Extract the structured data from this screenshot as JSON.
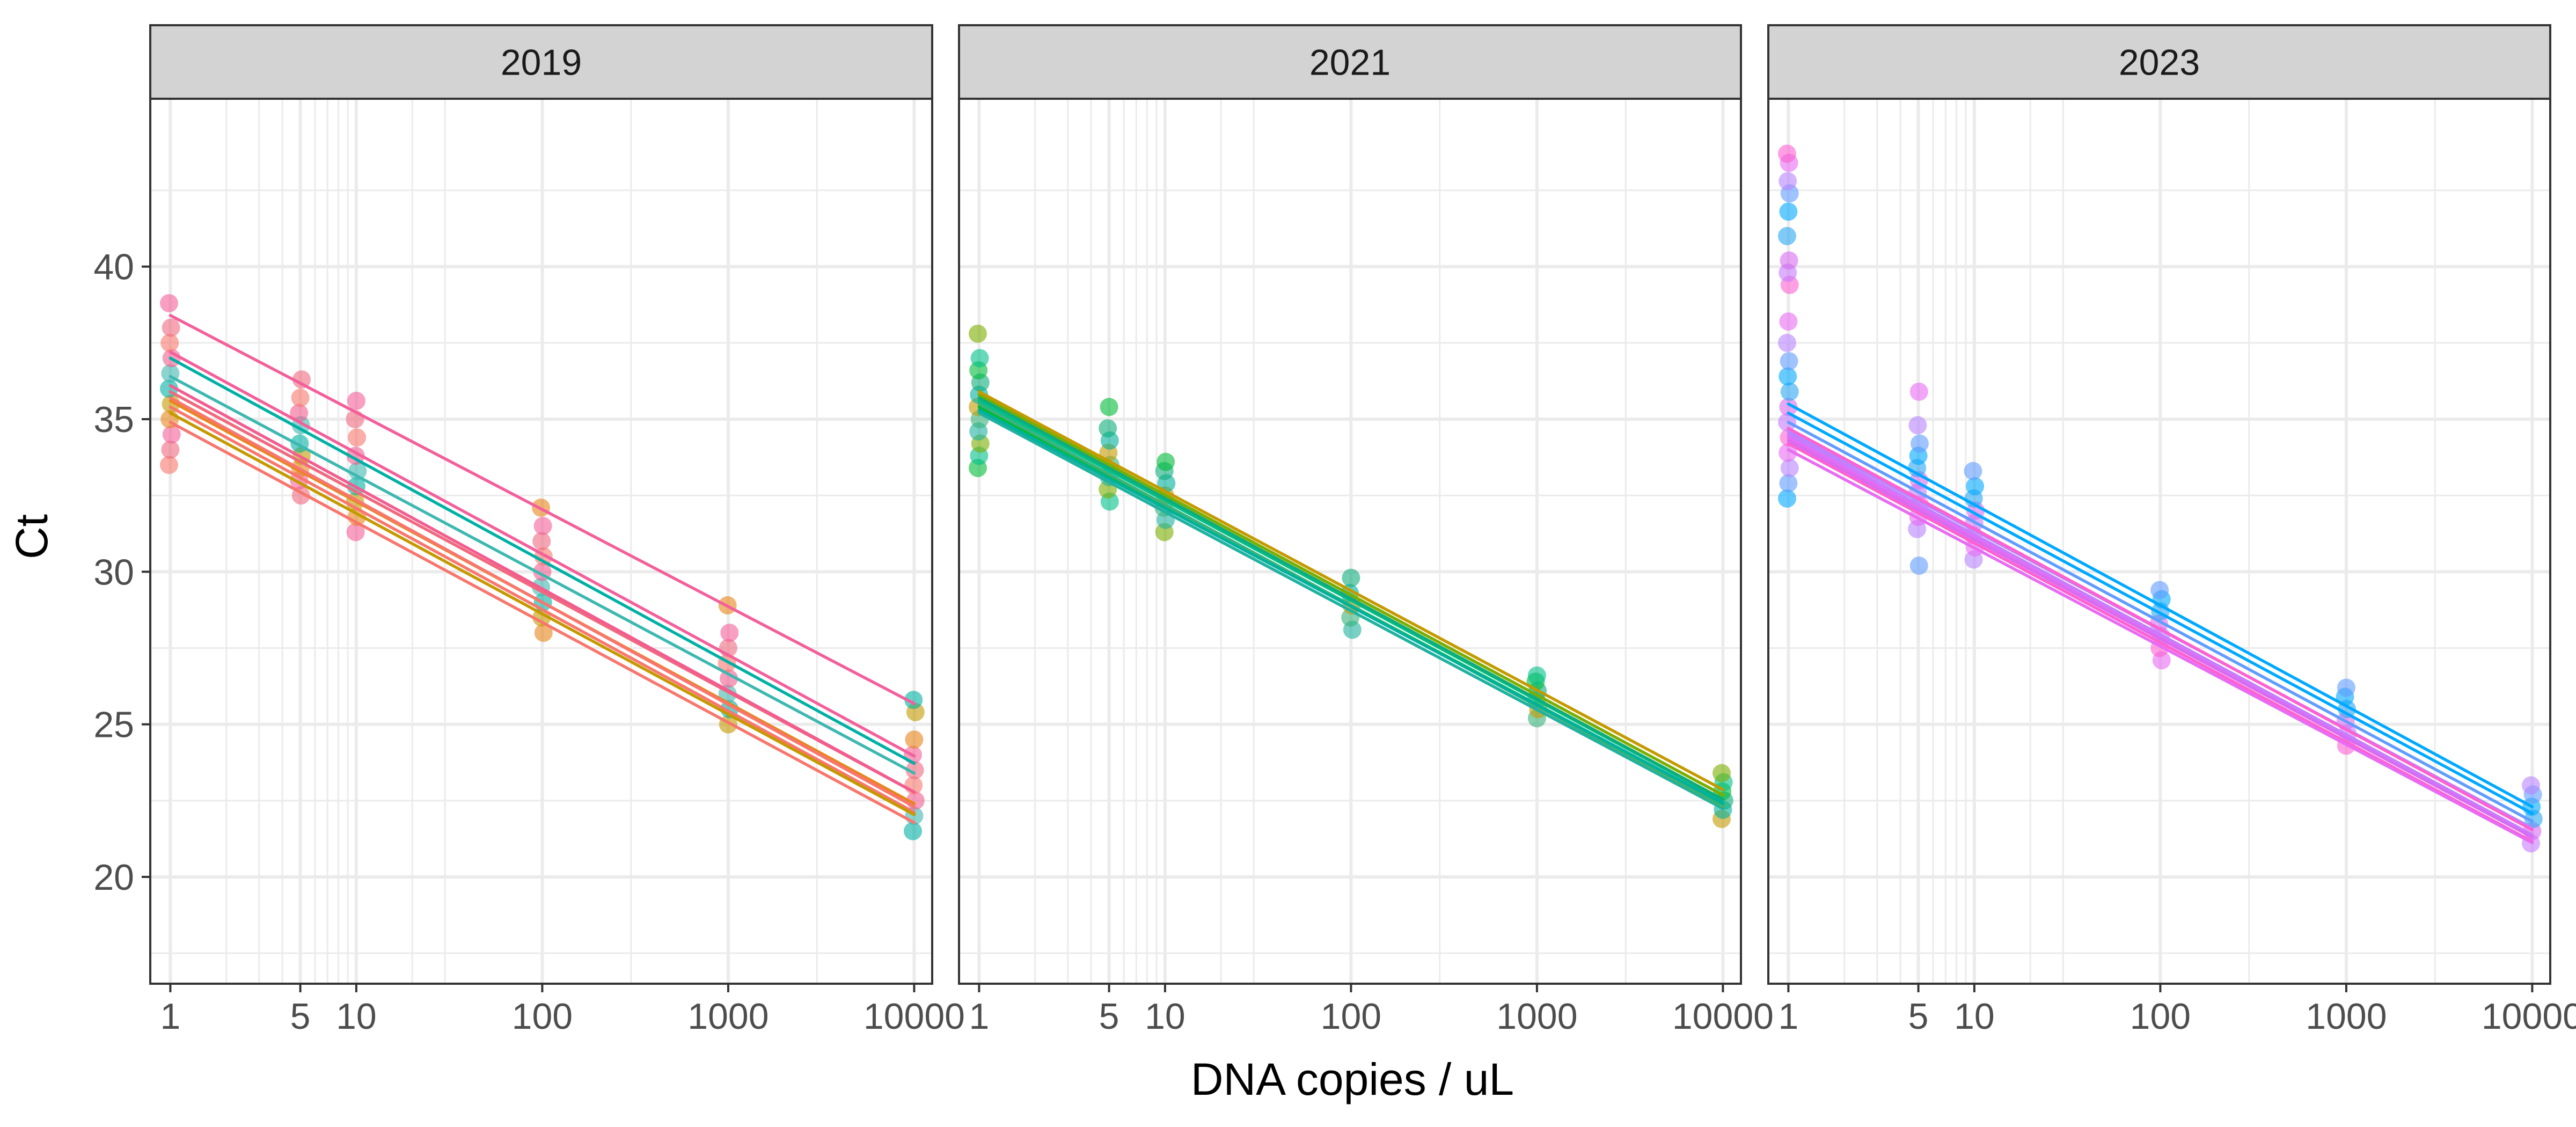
{
  "chart_data": {
    "type": "scatter",
    "xlabel": "DNA copies / uL",
    "ylabel": "Ct",
    "x_scale": "log10",
    "x_ticks": [
      1,
      5,
      10,
      100,
      1000,
      10000
    ],
    "x_tick_labels": [
      "1",
      "5",
      "10",
      "100",
      "1000",
      "10000"
    ],
    "y_ticks": [
      20,
      25,
      30,
      35,
      40
    ],
    "y_tick_labels": [
      "20",
      "25",
      "30",
      "35",
      "40"
    ],
    "ylim": [
      16.5,
      45.5
    ],
    "xlim": [
      0.78,
      12500
    ],
    "grid": true,
    "legend": "none",
    "colors": {
      "panel_border": "#333333",
      "strip_fill": "#d3d3d3",
      "grid": "#ebebeb",
      "p2019": [
        "#f8766d",
        "#f0697e",
        "#f35f9a",
        "#e7861b",
        "#c59900",
        "#00b0a5",
        "#3db8b0",
        "#f25d8f"
      ],
      "p2021": [
        "#00ba38",
        "#00c08b",
        "#7cae00",
        "#20b2a0",
        "#38b37a",
        "#c49a00",
        "#00b19c",
        "#0fad7a"
      ],
      "p2023": [
        "#00a9ff",
        "#619cff",
        "#b983ff",
        "#e76bf3",
        "#fd61d1",
        "#c77cff",
        "#d86cf0",
        "#2ba6f3"
      ]
    },
    "panels": [
      {
        "label": "2019",
        "fits": [
          {
            "color_index": 0,
            "intercept": 35.4,
            "slope": -3.32
          },
          {
            "color_index": 1,
            "intercept": 35.9,
            "slope": -3.28
          },
          {
            "color_index": 2,
            "intercept": 38.4,
            "slope": -3.18
          },
          {
            "color_index": 2,
            "intercept": 37.2,
            "slope": -3.31
          },
          {
            "color_index": 3,
            "intercept": 35.6,
            "slope": -3.3
          },
          {
            "color_index": 4,
            "intercept": 35.2,
            "slope": -3.29
          },
          {
            "color_index": 5,
            "intercept": 37.0,
            "slope": -3.32
          },
          {
            "color_index": 6,
            "intercept": 36.4,
            "slope": -3.25
          },
          {
            "color_index": 0,
            "intercept": 34.9,
            "slope": -3.28
          },
          {
            "color_index": 7,
            "intercept": 36.1,
            "slope": -3.33
          },
          {
            "color_index": 0,
            "intercept": 35.7,
            "slope": -3.35
          }
        ],
        "points": [
          {
            "x": 1,
            "y": [
              33.5,
              34.0,
              34.5,
              35.0,
              35.5,
              36.0,
              36.5,
              37.0,
              37.5,
              38.0,
              38.8
            ]
          },
          {
            "x": 5,
            "y": [
              32.5,
              33.0,
              33.4,
              33.8,
              34.2,
              34.8,
              35.2,
              35.7,
              36.3
            ]
          },
          {
            "x": 10,
            "y": [
              31.3,
              31.8,
              32.3,
              32.8,
              33.3,
              33.8,
              34.4,
              35.0,
              35.6
            ]
          },
          {
            "x": 100,
            "y": [
              28.0,
              28.5,
              29.0,
              29.5,
              30.0,
              30.5,
              31.0,
              31.5,
              32.1
            ]
          },
          {
            "x": 1000,
            "y": [
              25.0,
              25.5,
              26.0,
              26.5,
              27.0,
              27.5,
              28.0,
              28.9
            ]
          },
          {
            "x": 10000,
            "y": [
              21.5,
              22.0,
              22.5,
              23.0,
              23.5,
              24.0,
              24.5,
              25.4,
              25.8
            ]
          }
        ]
      },
      {
        "label": "2021",
        "fits": [
          {
            "color_index": 0,
            "intercept": 35.4,
            "slope": -3.25
          },
          {
            "color_index": 1,
            "intercept": 35.6,
            "slope": -3.27
          },
          {
            "color_index": 2,
            "intercept": 35.8,
            "slope": -3.28
          },
          {
            "color_index": 3,
            "intercept": 35.2,
            "slope": -3.24
          },
          {
            "color_index": 4,
            "intercept": 35.5,
            "slope": -3.3
          },
          {
            "color_index": 5,
            "intercept": 35.9,
            "slope": -3.26
          },
          {
            "color_index": 6,
            "intercept": 35.3,
            "slope": -3.22
          },
          {
            "color_index": 7,
            "intercept": 35.7,
            "slope": -3.29
          }
        ],
        "points": [
          {
            "x": 1,
            "y": [
              33.4,
              33.8,
              34.2,
              34.6,
              35.0,
              35.4,
              35.8,
              36.2,
              36.6,
              37.0,
              37.8
            ]
          },
          {
            "x": 5,
            "y": [
              32.3,
              32.7,
              33.1,
              33.5,
              33.9,
              34.3,
              34.7,
              35.4
            ]
          },
          {
            "x": 10,
            "y": [
              31.3,
              31.7,
              32.1,
              32.5,
              32.9,
              33.3,
              33.6
            ]
          },
          {
            "x": 100,
            "y": [
              28.1,
              28.5,
              28.9,
              29.3,
              29.8
            ]
          },
          {
            "x": 1000,
            "y": [
              25.2,
              25.5,
              25.8,
              26.1,
              26.4,
              26.6
            ]
          },
          {
            "x": 10000,
            "y": [
              21.9,
              22.2,
              22.5,
              22.8,
              23.1,
              23.4
            ]
          }
        ]
      },
      {
        "label": "2023",
        "fits": [
          {
            "color_index": 0,
            "intercept": 35.5,
            "slope": -3.3
          },
          {
            "color_index": 0,
            "intercept": 35.2,
            "slope": -3.28
          },
          {
            "color_index": 1,
            "intercept": 34.9,
            "slope": -3.27
          },
          {
            "color_index": 2,
            "intercept": 34.6,
            "slope": -3.25
          },
          {
            "color_index": 3,
            "intercept": 34.4,
            "slope": -3.27
          },
          {
            "color_index": 4,
            "intercept": 34.2,
            "slope": -3.26
          },
          {
            "color_index": 5,
            "intercept": 34.5,
            "slope": -3.28
          },
          {
            "color_index": 6,
            "intercept": 34.3,
            "slope": -3.25
          },
          {
            "color_index": 3,
            "intercept": 34.0,
            "slope": -3.22
          },
          {
            "color_index": 4,
            "intercept": 34.7,
            "slope": -3.29
          }
        ],
        "points": [
          {
            "x": 1,
            "y": [
              32.4,
              32.9,
              33.4,
              33.9,
              34.4,
              34.9,
              35.4,
              35.9,
              36.4,
              36.9,
              37.5,
              38.2,
              39.4,
              39.8,
              40.2,
              41.0,
              41.8,
              42.4,
              42.8,
              43.4,
              43.7
            ]
          },
          {
            "x": 5,
            "y": [
              30.2,
              31.4,
              31.8,
              32.2,
              32.6,
              33.0,
              33.4,
              33.8,
              34.2,
              34.8,
              35.9
            ]
          },
          {
            "x": 10,
            "y": [
              30.4,
              30.8,
              31.2,
              31.6,
              32.0,
              32.4,
              32.8,
              33.3
            ]
          },
          {
            "x": 100,
            "y": [
              27.1,
              27.5,
              27.9,
              28.3,
              28.7,
              29.1,
              29.4
            ]
          },
          {
            "x": 1000,
            "y": [
              24.3,
              24.7,
              25.1,
              25.5,
              25.9,
              26.2
            ]
          },
          {
            "x": 10000,
            "y": [
              21.1,
              21.5,
              21.9,
              22.3,
              22.7,
              23.0
            ]
          }
        ]
      }
    ]
  }
}
